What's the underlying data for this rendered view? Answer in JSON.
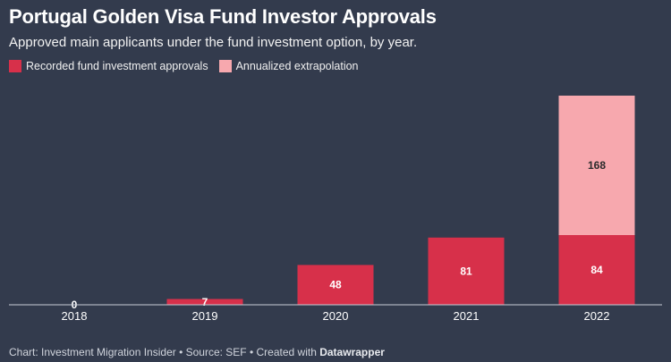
{
  "title": "Portugal Golden Visa Fund Investor Approvals",
  "subtitle": "Approved main applicants under the fund investment option, by year.",
  "footer": {
    "prefix": "Chart: Investment Migration Insider • Source: SEF • Created with ",
    "brand": "Datawrapper"
  },
  "colors": {
    "background": "#333b4d",
    "recorded": "#d7304a",
    "extrapolated": "#f7a8ae",
    "axis": "#c9cdd6"
  },
  "chart_data": {
    "type": "bar",
    "stacked": true,
    "categories": [
      "2018",
      "2019",
      "2020",
      "2021",
      "2022"
    ],
    "series": [
      {
        "name": "Recorded fund investment approvals",
        "values": [
          0,
          7,
          48,
          81,
          84
        ],
        "color": "#d7304a"
      },
      {
        "name": "Annualized extrapolation",
        "values": [
          0,
          0,
          0,
          0,
          168
        ],
        "color": "#f7a8ae"
      }
    ],
    "ylim": [
      0,
      252
    ],
    "grid": false,
    "legend_position": "top-left"
  }
}
